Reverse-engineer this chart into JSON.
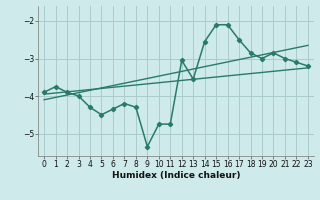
{
  "title": "",
  "xlabel": "Humidex (Indice chaleur)",
  "ylabel": "",
  "bg_color": "#ceeaea",
  "grid_color": "#aacccc",
  "line_color": "#2a7a6a",
  "xlim": [
    -0.5,
    23.5
  ],
  "ylim": [
    -5.6,
    -1.6
  ],
  "yticks": [
    -5,
    -4,
    -3,
    -2
  ],
  "xticks": [
    0,
    1,
    2,
    3,
    4,
    5,
    6,
    7,
    8,
    9,
    10,
    11,
    12,
    13,
    14,
    15,
    16,
    17,
    18,
    19,
    20,
    21,
    22,
    23
  ],
  "curve1_x": [
    0,
    1,
    2,
    3,
    4,
    5,
    6,
    7,
    8,
    9,
    10,
    11,
    12,
    13,
    14,
    15,
    16,
    17,
    18,
    19,
    20,
    21,
    22,
    23
  ],
  "curve1_y": [
    -3.9,
    -3.75,
    -3.9,
    -4.0,
    -4.3,
    -4.5,
    -4.35,
    -4.2,
    -4.3,
    -5.35,
    -4.75,
    -4.75,
    -3.05,
    -3.55,
    -2.55,
    -2.1,
    -2.1,
    -2.5,
    -2.85,
    -3.0,
    -2.85,
    -3.0,
    -3.1,
    -3.2
  ],
  "line1_x": [
    0,
    23
  ],
  "line1_y": [
    -3.95,
    -3.25
  ],
  "line2_x": [
    0,
    23
  ],
  "line2_y": [
    -4.1,
    -2.65
  ]
}
